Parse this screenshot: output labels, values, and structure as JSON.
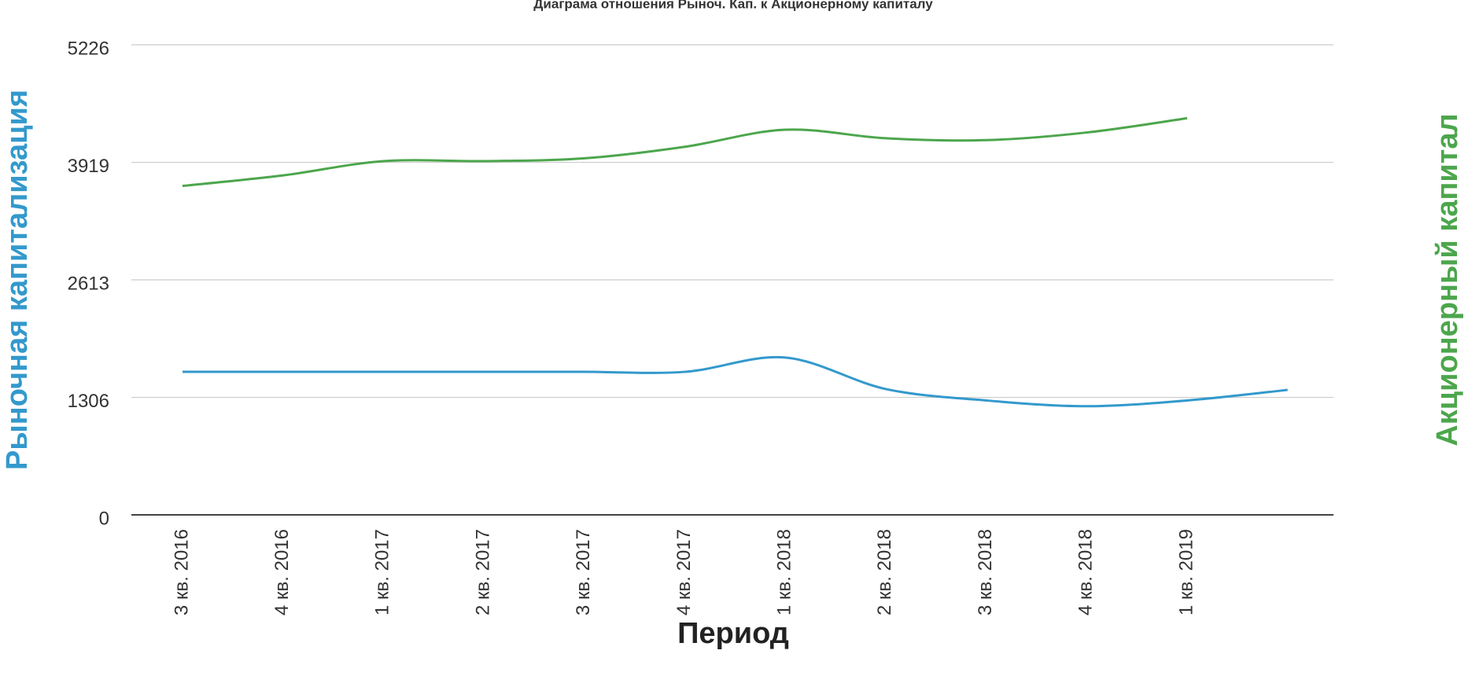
{
  "chart_data": {
    "type": "line",
    "title": "Диаграма отношения Рыноч. Кап. к Акционерному капиталу",
    "x_label": "Период",
    "y_label": "Рыночная капитализация",
    "y2_label": "Акционерный капитал",
    "categories": [
      "3 кв. 2016",
      "4 кв. 2016",
      "1 кв. 2017",
      "2 кв. 2017",
      "3 кв. 2017",
      "4 кв. 2017",
      "1 кв. 2018",
      "2 кв. 2018",
      "3 кв. 2018",
      "4 кв. 2018",
      "1 кв. 2019",
      null
    ],
    "series": [
      {
        "name": "Рыночная капитализация",
        "color": "#3399cc",
        "values": [
          1590,
          1590,
          1590,
          1590,
          1590,
          1590,
          1749,
          1399,
          1272,
          1208,
          1272,
          1389
        ]
      },
      {
        "name": "Акционерный капитал",
        "color": "#4ca64c",
        "values": [
          3657,
          3774,
          3933,
          3933,
          3964,
          4092,
          4282,
          4187,
          4166,
          4251,
          4410,
          null
        ]
      }
    ],
    "ylim": [
      0,
      5226
    ],
    "yticks": [
      0,
      1306,
      2613,
      3919,
      5226
    ],
    "grid": true
  }
}
